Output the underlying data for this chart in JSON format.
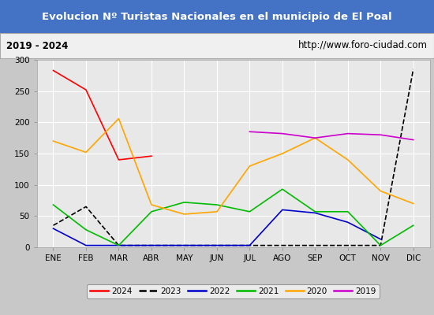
{
  "title": "Evolucion Nº Turistas Nacionales en el municipio de El Poal",
  "subtitle_left": "2019 - 2024",
  "subtitle_right": "http://www.foro-ciudad.com",
  "months": [
    "ENE",
    "FEB",
    "MAR",
    "ABR",
    "MAY",
    "JUN",
    "JUL",
    "AGO",
    "SEP",
    "OCT",
    "NOV",
    "DIC"
  ],
  "series": {
    "2024": {
      "color": "#ff0000",
      "data": [
        283,
        252,
        140,
        146,
        null,
        null,
        null,
        null,
        null,
        null,
        null,
        null
      ]
    },
    "2023": {
      "color": "#000000",
      "data": [
        35,
        65,
        3,
        null,
        null,
        null,
        null,
        null,
        null,
        null,
        3,
        285
      ]
    },
    "2022": {
      "color": "#0000cc",
      "data": [
        30,
        3,
        null,
        null,
        null,
        null,
        3,
        60,
        55,
        40,
        13,
        null
      ]
    },
    "2021": {
      "color": "#00bb00",
      "data": [
        68,
        28,
        3,
        57,
        72,
        68,
        57,
        93,
        57,
        57,
        3,
        35
      ]
    },
    "2020": {
      "color": "#ffa500",
      "data": [
        170,
        152,
        206,
        68,
        53,
        57,
        130,
        150,
        175,
        140,
        90,
        70
      ]
    },
    "2019": {
      "color": "#cc00cc",
      "data": [
        null,
        null,
        null,
        null,
        null,
        null,
        185,
        182,
        175,
        182,
        180,
        172
      ]
    }
  },
  "ylim": [
    0,
    300
  ],
  "yticks": [
    0,
    50,
    100,
    150,
    200,
    250,
    300
  ],
  "title_bg_color": "#4472c4",
  "title_font_color": "#ffffff",
  "subtitle_bg_color": "#f0f0f0",
  "plot_bg_color": "#e8e8e8",
  "outer_bg_color": "#c8c8c8",
  "grid_color": "#ffffff",
  "border_color": "#aaaaaa",
  "legend_order": [
    "2024",
    "2023",
    "2022",
    "2021",
    "2020",
    "2019"
  ]
}
